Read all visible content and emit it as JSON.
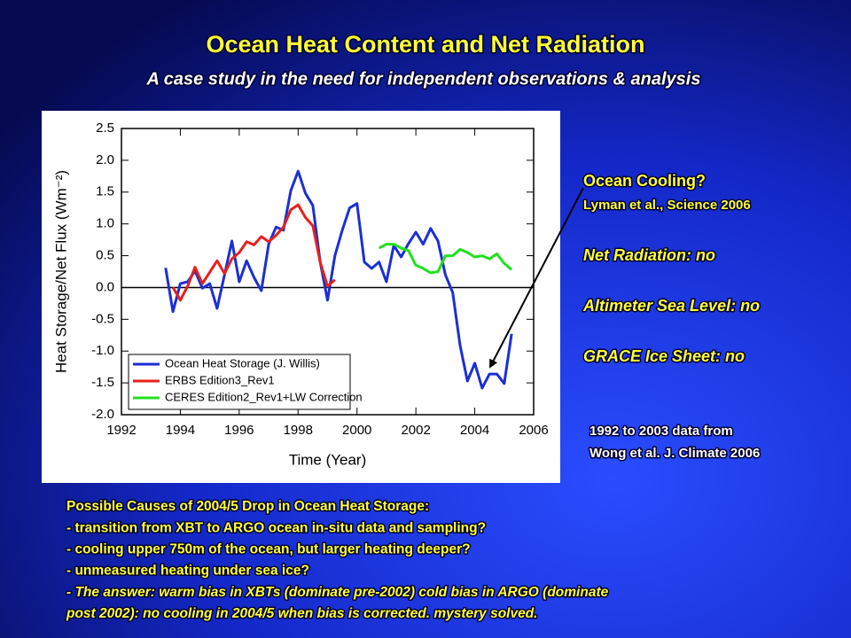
{
  "slide": {
    "title": "Ocean Heat Content and Net Radiation",
    "subtitle": "A case study in the need for independent observations & analysis",
    "side_notes": [
      "Ocean Cooling?",
      "Lyman et al., Science 2006",
      "Net Radiation: no",
      "Altimeter Sea Level: no",
      "GRACE Ice Sheet: no"
    ],
    "source_note": [
      "1992 to 2003 data from",
      "Wong et al. J. Climate 2006"
    ],
    "bottom_notes": [
      "Possible Causes of 2004/5 Drop in Ocean Heat Storage:",
      "- transition from XBT to ARGO ocean in-situ data and sampling?",
      "- cooling upper 750m of the ocean, but larger heating deeper?",
      "- unmeasured heating under sea ice?",
      "- The answer: warm bias in XBTs (dominate pre-2002) cold bias in ARGO (dominate",
      "post 2002): no cooling in 2004/5 when bias is corrected. mystery solved."
    ]
  },
  "chart_data": {
    "type": "line",
    "x_label": "Time (Year)",
    "y_label": "Heat Storage/Net Flux (Wm⁻²)",
    "xlim": [
      1992,
      2006
    ],
    "xticks": [
      1992,
      1994,
      1996,
      1998,
      2000,
      2002,
      2004,
      2006
    ],
    "ylim": [
      -2,
      2.5
    ],
    "yticks": [
      {
        "value": -2,
        "label": "-2.0"
      },
      -1.5,
      {
        "value": -1,
        "label": "-1.0"
      },
      -0.5,
      {
        "value": 0,
        "label": "0.0"
      },
      0.5,
      {
        "value": 1,
        "label": "1.0"
      },
      1.5,
      {
        "value": 2,
        "label": "2.0"
      },
      2.5
    ],
    "hlines": [
      0
    ],
    "series": [
      {
        "name": "Ocean Heat Storage (J. Willis)",
        "color": "#1a2fd6",
        "x": [
          1993.5,
          1993.75,
          1994,
          1994.25,
          1994.5,
          1994.75,
          1995,
          1995.25,
          1995.5,
          1995.75,
          1996,
          1996.25,
          1996.5,
          1996.75,
          1997,
          1997.25,
          1997.5,
          1997.75,
          1998,
          1998.25,
          1998.5,
          1998.75,
          1999,
          1999.25,
          1999.5,
          1999.75,
          2000,
          2000.25,
          2000.5,
          2000.75,
          2001,
          2001.25,
          2001.5,
          2001.75,
          2002,
          2002.25,
          2002.5,
          2002.75,
          2003,
          2003.25,
          2003.5,
          2003.75,
          2004,
          2004.25,
          2004.5,
          2004.75,
          2005,
          2005.25
        ],
        "values": [
          0.31,
          -0.38,
          0.06,
          0.09,
          0.26,
          -0.01,
          0.06,
          -0.33,
          0.2,
          0.73,
          0.09,
          0.42,
          0.16,
          -0.05,
          0.68,
          0.95,
          0.9,
          1.52,
          1.83,
          1.48,
          1.29,
          0.4,
          -0.2,
          0.5,
          0.9,
          1.25,
          1.32,
          0.4,
          0.3,
          0.4,
          0.09,
          0.66,
          0.48,
          0.69,
          0.87,
          0.68,
          0.93,
          0.73,
          0.2,
          -0.08,
          -0.91,
          -1.47,
          -1.19,
          -1.58,
          -1.36,
          -1.36,
          -1.51,
          -0.73
        ]
      },
      {
        "name": "ERBS Edition3_Rev1",
        "color": "#e8201c",
        "x": [
          1993.75,
          1994,
          1994.25,
          1994.5,
          1994.75,
          1995,
          1995.25,
          1995.5,
          1995.75,
          1996,
          1996.25,
          1996.5,
          1996.75,
          1997,
          1997.25,
          1997.5,
          1997.75,
          1998,
          1998.25,
          1998.5,
          1998.75,
          1999,
          1999.25
        ],
        "values": [
          0.0,
          -0.2,
          0.02,
          0.32,
          0.06,
          0.24,
          0.42,
          0.22,
          0.45,
          0.55,
          0.72,
          0.67,
          0.8,
          0.72,
          0.82,
          0.95,
          1.22,
          1.3,
          1.1,
          0.97,
          0.4,
          0.02,
          0.12
        ]
      },
      {
        "name": "CERES Edition2_Rev1+LW Correction",
        "color": "#22e01e",
        "x": [
          2000.75,
          2001,
          2001.25,
          2001.5,
          2001.75,
          2002,
          2002.25,
          2002.5,
          2002.75,
          2003,
          2003.25,
          2003.5,
          2003.75,
          2004,
          2004.25,
          2004.5,
          2004.75,
          2005,
          2005.25
        ],
        "values": [
          0.62,
          0.68,
          0.68,
          0.62,
          0.58,
          0.35,
          0.3,
          0.23,
          0.25,
          0.5,
          0.5,
          0.6,
          0.55,
          0.48,
          0.5,
          0.45,
          0.53,
          0.38,
          0.28
        ]
      }
    ]
  }
}
